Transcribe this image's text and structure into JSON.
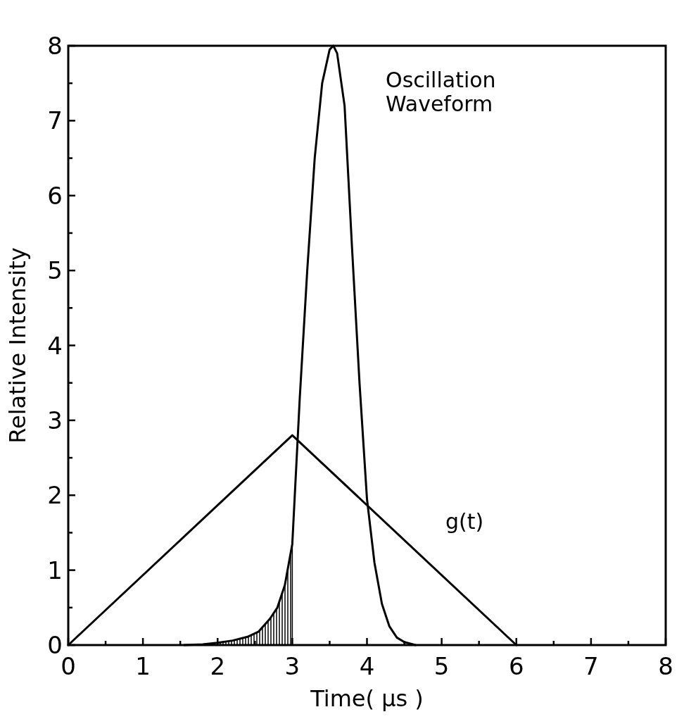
{
  "chart_data": {
    "type": "line",
    "xlabel": "Time( μs )",
    "ylabel": "Relative Intensity",
    "xlim": [
      0,
      8
    ],
    "ylim": [
      0,
      8
    ],
    "xticks": [
      0,
      {
        "value": 0.5,
        "label": null
      },
      1,
      {
        "value": 1.5,
        "label": null
      },
      2,
      {
        "value": 2.5,
        "label": null
      },
      3,
      {
        "value": 3.5,
        "label": null
      },
      4,
      {
        "value": 4.5,
        "label": null
      },
      5,
      {
        "value": 5.5,
        "label": null
      },
      6,
      {
        "value": 6.5,
        "label": null
      },
      7,
      {
        "value": 7.5,
        "label": null
      },
      8
    ],
    "yticks": [
      0,
      {
        "value": 0.5,
        "label": null
      },
      1,
      {
        "value": 1.5,
        "label": null
      },
      2,
      {
        "value": 2.5,
        "label": null
      },
      3,
      {
        "value": 3.5,
        "label": null
      },
      4,
      {
        "value": 4.5,
        "label": null
      },
      5,
      {
        "value": 5.5,
        "label": null
      },
      6,
      {
        "value": 6.5,
        "label": null
      },
      7,
      {
        "value": 7.5,
        "label": null
      },
      8
    ],
    "grid": false,
    "line_style": "solid",
    "series": [
      {
        "name": "Oscillation Waveform",
        "color": "#000000",
        "x": [
          1.55,
          1.8,
          2.0,
          2.2,
          2.4,
          2.55,
          2.7,
          2.8,
          2.9,
          3.0,
          3.1,
          3.2,
          3.3,
          3.4,
          3.5,
          3.55,
          3.6,
          3.7,
          3.8,
          3.9,
          4.0,
          4.1,
          4.2,
          4.3,
          4.4,
          4.5,
          4.65
        ],
        "values": [
          0,
          0.01,
          0.03,
          0.06,
          0.11,
          0.18,
          0.35,
          0.5,
          0.8,
          1.35,
          3.3,
          5.0,
          6.5,
          7.5,
          7.95,
          8.0,
          7.9,
          7.2,
          5.3,
          3.5,
          1.95,
          1.1,
          0.55,
          0.25,
          0.1,
          0.04,
          0
        ]
      },
      {
        "name": "g(t)",
        "color": "#000000",
        "x": [
          0,
          3,
          6
        ],
        "values": [
          0,
          2.8,
          0
        ]
      },
      {
        "type": "area",
        "color": "#000000",
        "x": [
          1.55,
          1.8,
          2.0,
          2.2,
          2.4,
          2.55,
          2.7,
          2.8,
          2.9,
          3.0
        ],
        "values": [
          0,
          0.01,
          0.03,
          0.06,
          0.11,
          0.18,
          0.35,
          0.5,
          0.8,
          1.35
        ]
      }
    ]
  }
}
